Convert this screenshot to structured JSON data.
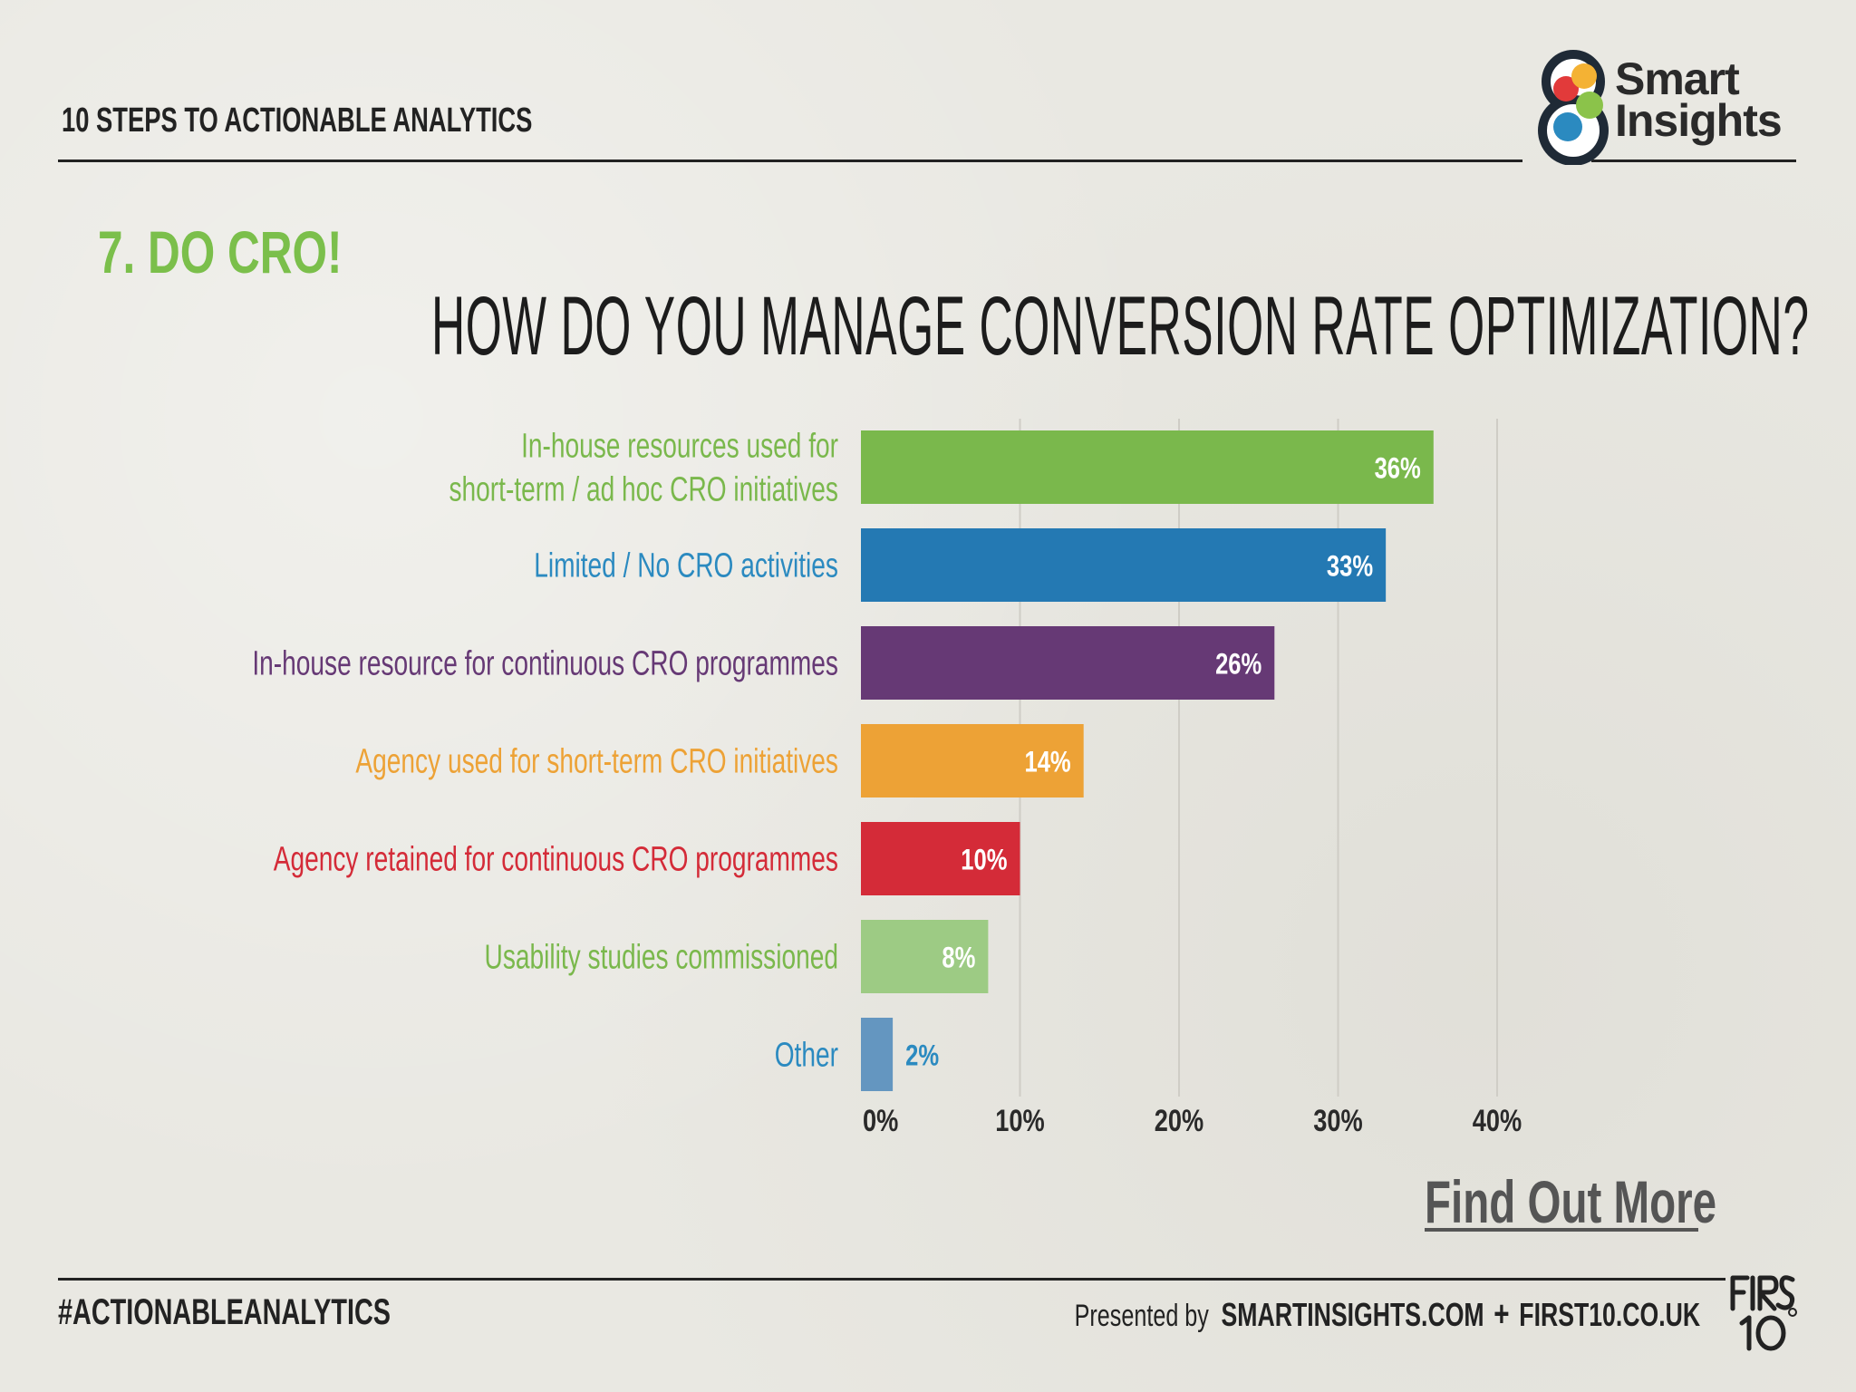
{
  "header": {
    "title": "10 STEPS TO ACTIONABLE ANALYTICS",
    "logo_text_line1": "Smart",
    "logo_text_line2": "Insights"
  },
  "section_label": "7. DO CRO!",
  "cta": "Find Out More",
  "footer": {
    "hashtag": "#ACTIONABLEANALYTICS",
    "presented_by": "Presented by",
    "site1": "SMARTINSIGHTS.COM",
    "plus": "+",
    "site2": "FIRST10.CO.UK",
    "logo_text": "FIRST 10"
  },
  "chart_data": {
    "type": "bar",
    "orientation": "horizontal",
    "title": "HOW DO YOU MANAGE CONVERSION RATE OPTIMIZATION?",
    "categories": [
      [
        "In-house resources used for",
        "short-term / ad hoc CRO initiatives"
      ],
      [
        "Limited / No CRO activities"
      ],
      [
        "In-house resource for continuous CRO programmes"
      ],
      [
        "Agency used for short-term CRO initiatives"
      ],
      [
        "Agency retained for continuous CRO programmes"
      ],
      [
        "Usability studies commissioned"
      ],
      [
        "Other"
      ]
    ],
    "values": [
      36,
      33,
      26,
      14,
      10,
      8,
      2
    ],
    "value_labels": [
      "36%",
      "33%",
      "26%",
      "14%",
      "10%",
      "8%",
      "2%"
    ],
    "colors": [
      "#7ab84c",
      "#2479b3",
      "#663975",
      "#eda236",
      "#d42b38",
      "#9dcb84",
      "#6496c0"
    ],
    "label_colors": [
      "#7ab84c",
      "#2b8ac0",
      "#663975",
      "#eda236",
      "#d42b38",
      "#7ab84c",
      "#2b8ac0"
    ],
    "xlim": [
      0,
      40
    ],
    "ticks": [
      0,
      10,
      20,
      30,
      40
    ],
    "tick_labels": [
      "0%",
      "10%",
      "20%",
      "30%",
      "40%"
    ],
    "grid": true
  }
}
